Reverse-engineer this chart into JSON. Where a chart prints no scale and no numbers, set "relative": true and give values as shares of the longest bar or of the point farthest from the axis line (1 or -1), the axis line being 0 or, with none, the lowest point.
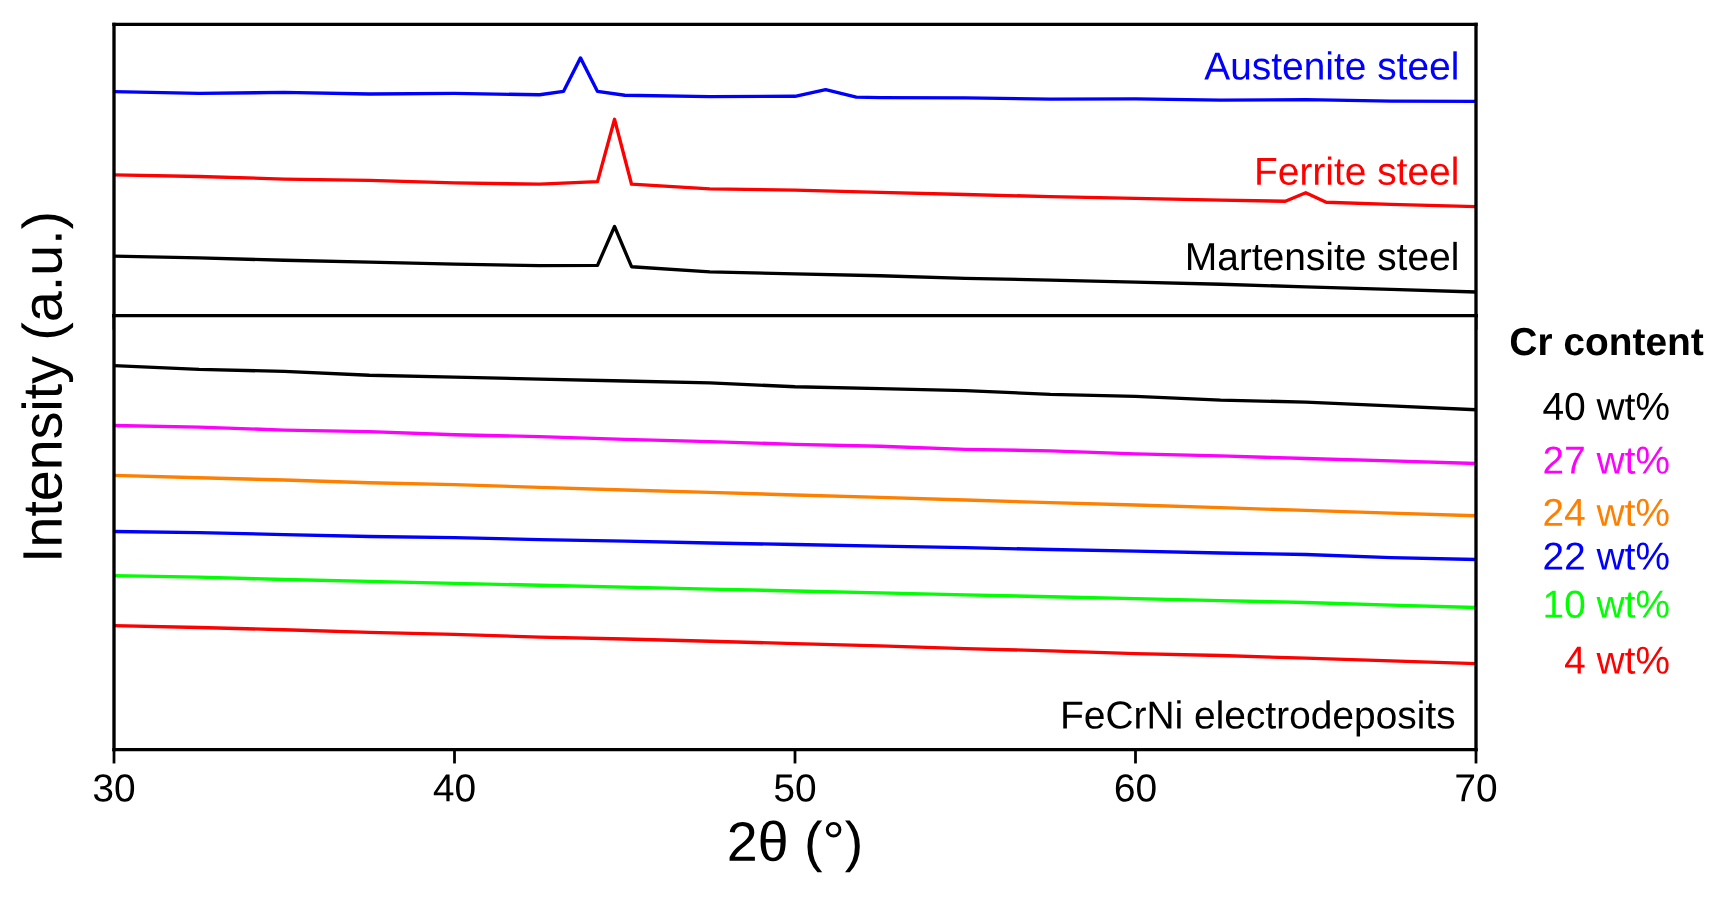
{
  "chart_data": [
    {
      "type": "line",
      "relative": true,
      "xlim": [
        30,
        70
      ],
      "xticks": [
        30,
        40,
        50,
        60,
        70
      ],
      "tick_labels": false,
      "series": [
        {
          "name": "Austenite steel",
          "color": "#0000ff",
          "x": [
            30,
            32.5,
            35,
            37.5,
            40,
            42.5,
            43.2,
            43.7,
            44.2,
            45,
            47.5,
            50,
            50.9,
            51.8,
            52.5,
            55,
            57.5,
            60,
            62.5,
            65,
            67.5,
            70
          ],
          "values": [
            0.869,
            0.862,
            0.866,
            0.86,
            0.862,
            0.857,
            0.87,
            1.0,
            0.87,
            0.855,
            0.85,
            0.851,
            0.877,
            0.848,
            0.846,
            0.845,
            0.84,
            0.841,
            0.836,
            0.838,
            0.832,
            0.831
          ]
        },
        {
          "name": "Ferrite steel",
          "color": "#ff0000",
          "x": [
            30,
            32.5,
            35,
            37.5,
            40,
            42.5,
            44.2,
            44.7,
            45.2,
            47.5,
            50,
            52.5,
            55,
            57.5,
            60,
            62.5,
            64.4,
            65,
            65.6,
            67.5,
            70
          ],
          "values": [
            0.546,
            0.54,
            0.53,
            0.525,
            0.515,
            0.51,
            0.52,
            0.762,
            0.51,
            0.492,
            0.487,
            0.478,
            0.47,
            0.462,
            0.455,
            0.448,
            0.444,
            0.477,
            0.44,
            0.432,
            0.423
          ]
        },
        {
          "name": "Martensite steel",
          "color": "#000000",
          "x": [
            30,
            32.5,
            35,
            37.5,
            40,
            42.5,
            44.2,
            44.7,
            45.2,
            47.5,
            50,
            52.5,
            55,
            57.5,
            60,
            62.5,
            65,
            67.5,
            70
          ],
          "values": [
            0.231,
            0.224,
            0.215,
            0.208,
            0.2,
            0.194,
            0.195,
            0.346,
            0.19,
            0.17,
            0.162,
            0.155,
            0.145,
            0.138,
            0.13,
            0.122,
            0.112,
            0.102,
            0.092
          ]
        }
      ]
    },
    {
      "type": "line",
      "relative": true,
      "xlim": [
        30,
        70
      ],
      "xticks": [
        30,
        40,
        50,
        60,
        70
      ],
      "tick_labels": "x",
      "xlabel": "2θ (°)",
      "ylabel": "Intensity (a.u.)",
      "legend_title": "Cr content",
      "annotations": [
        "FeCrNi electrodeposits"
      ],
      "x": [
        30,
        32.5,
        35,
        37.5,
        40,
        42.5,
        45,
        47.5,
        50,
        52.5,
        55,
        57.5,
        60,
        62.5,
        65,
        67.5,
        70
      ],
      "series": [
        {
          "name": "40 wt%",
          "color": "#000000",
          "values": [
            1.0,
            0.99,
            0.985,
            0.975,
            0.97,
            0.965,
            0.96,
            0.955,
            0.945,
            0.94,
            0.935,
            0.925,
            0.92,
            0.91,
            0.905,
            0.895,
            0.885
          ]
        },
        {
          "name": "27 wt%",
          "color": "#ff00ff",
          "values": [
            0.844,
            0.84,
            0.832,
            0.828,
            0.82,
            0.815,
            0.808,
            0.802,
            0.795,
            0.79,
            0.782,
            0.778,
            0.77,
            0.765,
            0.758,
            0.752,
            0.745
          ]
        },
        {
          "name": "24 wt%",
          "color": "#ff8000",
          "values": [
            0.714,
            0.708,
            0.702,
            0.695,
            0.69,
            0.683,
            0.676,
            0.67,
            0.663,
            0.657,
            0.65,
            0.643,
            0.637,
            0.63,
            0.623,
            0.616,
            0.609
          ]
        },
        {
          "name": "22 wt%",
          "color": "#0000ff",
          "values": [
            0.568,
            0.565,
            0.56,
            0.555,
            0.552,
            0.547,
            0.543,
            0.538,
            0.534,
            0.53,
            0.526,
            0.521,
            0.517,
            0.512,
            0.508,
            0.5,
            0.495
          ]
        },
        {
          "name": "10 wt%",
          "color": "#00ff00",
          "values": [
            0.453,
            0.449,
            0.443,
            0.438,
            0.433,
            0.428,
            0.423,
            0.418,
            0.413,
            0.408,
            0.403,
            0.398,
            0.393,
            0.388,
            0.383,
            0.376,
            0.37
          ]
        },
        {
          "name": "4 wt%",
          "color": "#ff0000",
          "values": [
            0.323,
            0.318,
            0.312,
            0.305,
            0.3,
            0.293,
            0.288,
            0.282,
            0.276,
            0.27,
            0.263,
            0.257,
            0.25,
            0.245,
            0.238,
            0.231,
            0.224
          ]
        }
      ]
    }
  ]
}
